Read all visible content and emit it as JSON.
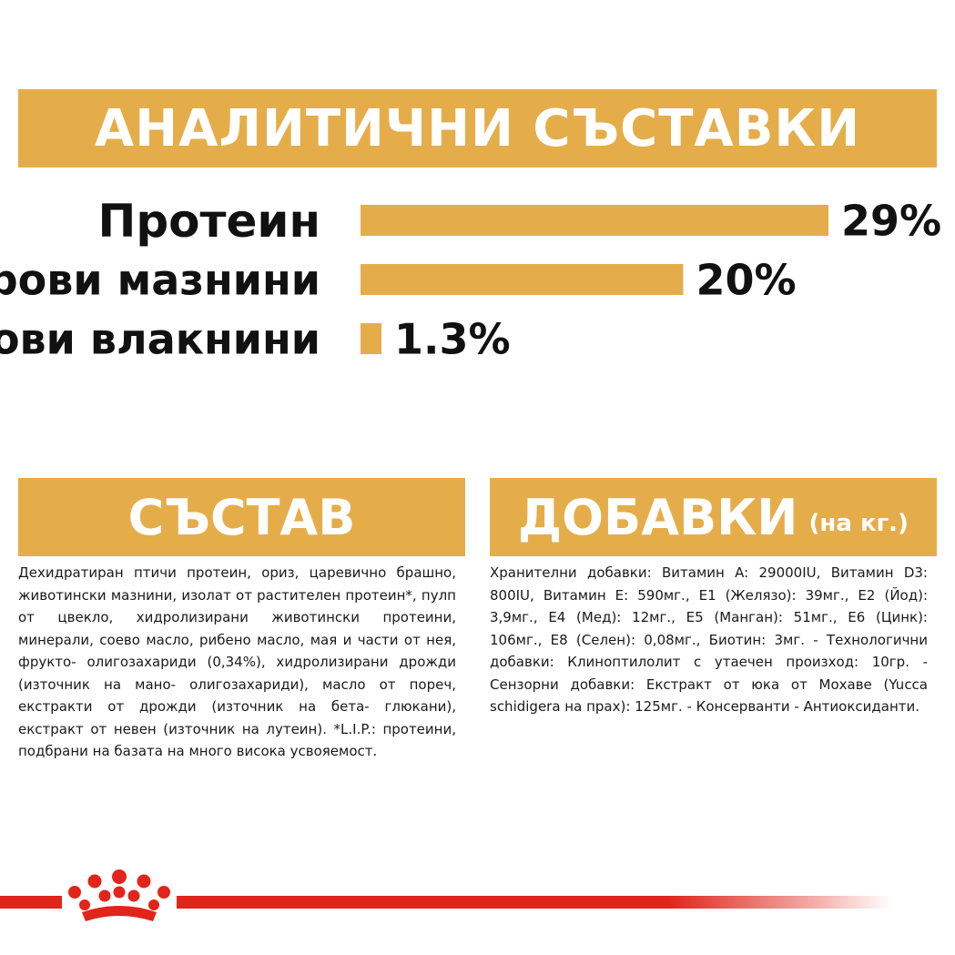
{
  "header": {
    "title": "АНАЛИТИЧНИ СЪСТАВКИ"
  },
  "chart_data": {
    "type": "bar",
    "orientation": "horizontal",
    "categories": [
      "Протеин",
      "Сурови мазнини",
      "Сурови влакнини"
    ],
    "values": [
      29,
      20,
      1.3
    ],
    "value_labels": [
      "29%",
      "20%",
      "1.3%"
    ],
    "unit": "%",
    "xlim": [
      0,
      29
    ],
    "grid": false,
    "legend": "none",
    "bar_color": "#e5ad4a"
  },
  "composition": {
    "title": "СЪСТАВ",
    "text": "Дехидратиран птичи протеин, ориз, царевично брашно, животински мазнини, изолат от растителен протеин*, пулп от цвекло, хидролизирани животински протеини, минерали, соево масло, рибено масло, мая и части от нея, фрукто- олигозахариди (0,34%), хидролизирани дрожди (източник на мано- олигозахариди), масло от пореч, екстракти от дрожди (източник на бета- глюкани), екстракт от невен (източник на лутеин). *L.I.P.: протеини, подбрани на базата на много висока усвояемост."
  },
  "additives": {
    "title": "ДОБАВКИ",
    "subtitle": "(на кг.)",
    "text": "Хранителни добавки: Витамин A: 29000IU, Витамин D3: 800IU, Витамин E: 590мг., E1 (Желязо): 39мг., E2 (Йод): 3,9мг., E4 (Мед): 12мг., E5 (Манган): 51мг., E6 (Цинк): 106мг., E8 (Селен): 0,08мг., Биотин: 3мг. - Технологични добавки: Клиноптилолит с утаечен произход: 10гр. - Сензорни добавки: Екстракт от юка от Мохаве (Yucca schidigera на прах): 125мг. - Консерванти - Антиоксиданти."
  },
  "colors": {
    "banner": "#e5ad4a",
    "accent_red": "#e1251b"
  },
  "footer": {
    "logo_icon": "crown-logo-icon"
  }
}
